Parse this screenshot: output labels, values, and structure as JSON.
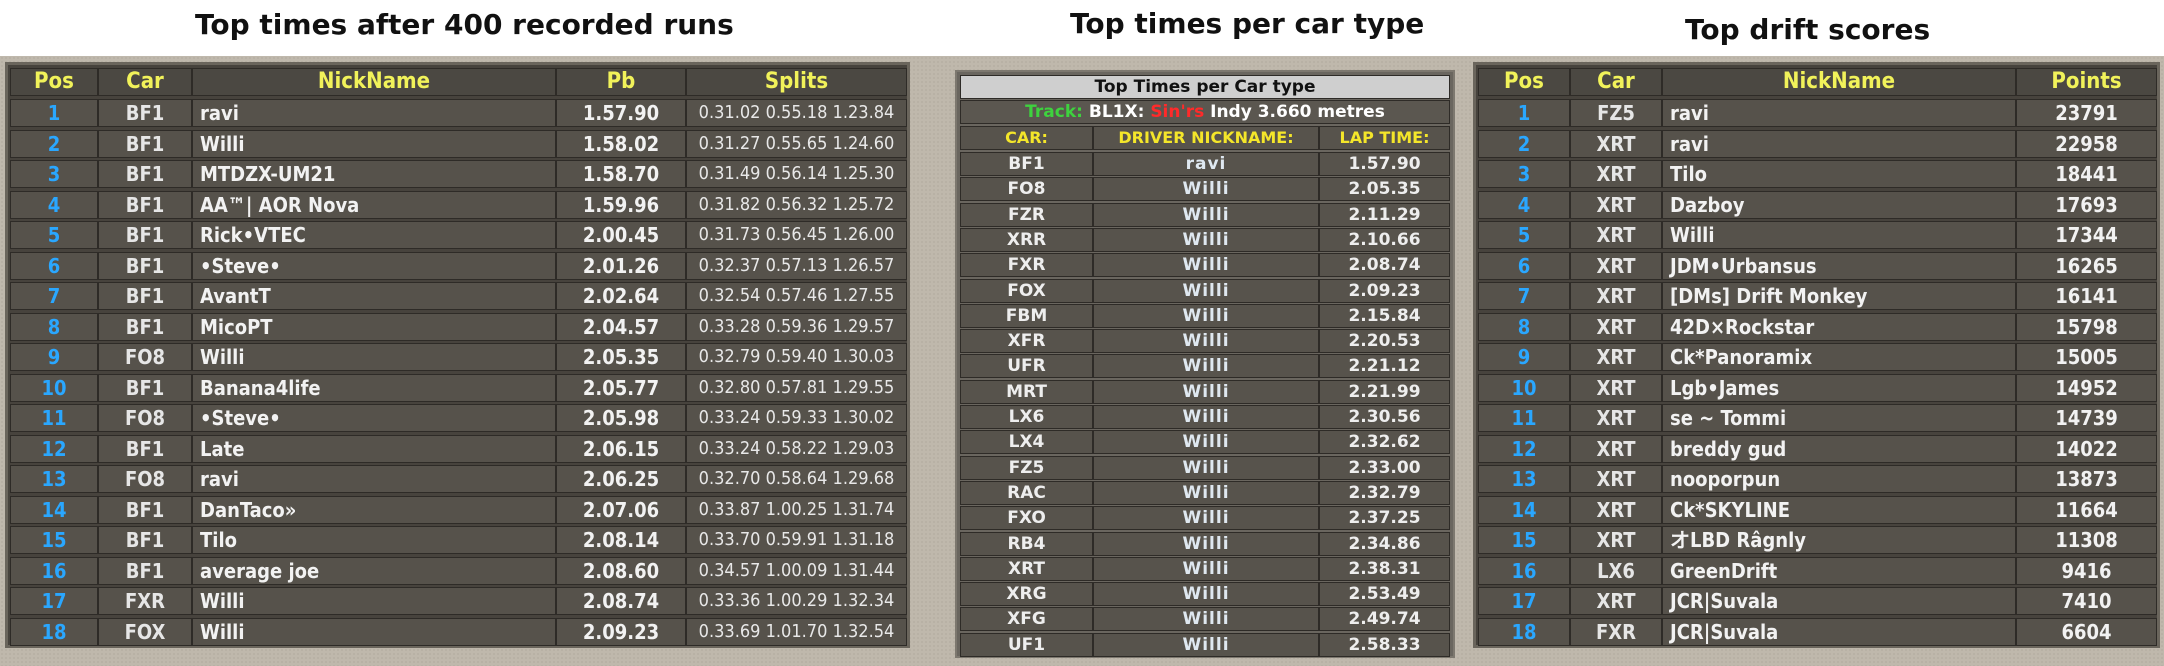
{
  "titles": {
    "left": "Top times after 400 recorded runs",
    "middle": "Top times per car type",
    "right": "Top drift scores"
  },
  "colors": {
    "header_text": "#f1f25a",
    "position_text": "#2aa7ff",
    "panel_bg": "#47433d",
    "board_bg": "#bfb8ac"
  },
  "left_table": {
    "headers": {
      "pos": "Pos",
      "car": "Car",
      "nick": "NickName",
      "pb": "Pb",
      "splits": "Splits"
    },
    "rows": [
      {
        "pos": "1",
        "car": "BF1",
        "nick": "ravi",
        "pb": "1.57.90",
        "splits": "0.31.02 0.55.18 1.23.84"
      },
      {
        "pos": "2",
        "car": "BF1",
        "nick": "Willi",
        "pb": "1.58.02",
        "splits": "0.31.27 0.55.65 1.24.60"
      },
      {
        "pos": "3",
        "car": "BF1",
        "nick": "MTDZX-UM21",
        "pb": "1.58.70",
        "splits": "0.31.49 0.56.14 1.25.30"
      },
      {
        "pos": "4",
        "car": "BF1",
        "nick": "AA™| AOR Nova",
        "pb": "1.59.96",
        "splits": "0.31.82 0.56.32 1.25.72"
      },
      {
        "pos": "5",
        "car": "BF1",
        "nick": "Rick•VTEC",
        "pb": "2.00.45",
        "splits": "0.31.73 0.56.45 1.26.00"
      },
      {
        "pos": "6",
        "car": "BF1",
        "nick": "•Steve•",
        "pb": "2.01.26",
        "splits": "0.32.37 0.57.13 1.26.57"
      },
      {
        "pos": "7",
        "car": "BF1",
        "nick": "AvantT",
        "pb": "2.02.64",
        "splits": "0.32.54 0.57.46 1.27.55"
      },
      {
        "pos": "8",
        "car": "BF1",
        "nick": "MicoPT",
        "pb": "2.04.57",
        "splits": "0.33.28 0.59.36 1.29.57"
      },
      {
        "pos": "9",
        "car": "FO8",
        "nick": "Willi",
        "pb": "2.05.35",
        "splits": "0.32.79 0.59.40 1.30.03"
      },
      {
        "pos": "10",
        "car": "BF1",
        "nick": "Banana4life",
        "pb": "2.05.77",
        "splits": "0.32.80 0.57.81 1.29.55"
      },
      {
        "pos": "11",
        "car": "FO8",
        "nick": "•Steve•",
        "pb": "2.05.98",
        "splits": "0.33.24 0.59.33 1.30.02"
      },
      {
        "pos": "12",
        "car": "BF1",
        "nick": "Late",
        "pb": "2.06.15",
        "splits": "0.33.24 0.58.22 1.29.03"
      },
      {
        "pos": "13",
        "car": "FO8",
        "nick": "ravi",
        "pb": "2.06.25",
        "splits": "0.32.70 0.58.64 1.29.68"
      },
      {
        "pos": "14",
        "car": "BF1",
        "nick": "DanTaco»",
        "pb": "2.07.06",
        "splits": "0.33.87 1.00.25 1.31.74"
      },
      {
        "pos": "15",
        "car": "BF1",
        "nick": "Tilo",
        "pb": "2.08.14",
        "splits": "0.33.70 0.59.91 1.31.18"
      },
      {
        "pos": "16",
        "car": "BF1",
        "nick": "average joe",
        "pb": "2.08.60",
        "splits": "0.34.57 1.00.09 1.31.44"
      },
      {
        "pos": "17",
        "car": "FXR",
        "nick": "Willi",
        "pb": "2.08.74",
        "splits": "0.33.36 1.00.29 1.32.34"
      },
      {
        "pos": "18",
        "car": "FOX",
        "nick": "Willi",
        "pb": "2.09.23",
        "splits": "0.33.69 1.01.70 1.32.54"
      }
    ]
  },
  "middle_table": {
    "title": "Top Times per Car type",
    "track_label": "Track:",
    "track_code": "BL1X:",
    "track_server": "Sin'rs",
    "track_desc": "Indy 3.660 metres",
    "headers": {
      "car": "CAR:",
      "nick": "DRIVER NICKNAME:",
      "time": "LAP TIME:"
    },
    "rows": [
      {
        "car": "BF1",
        "nick": "ravi",
        "time": "1.57.90"
      },
      {
        "car": "FO8",
        "nick": "Willi",
        "time": "2.05.35"
      },
      {
        "car": "FZR",
        "nick": "Willi",
        "time": "2.11.29"
      },
      {
        "car": "XRR",
        "nick": "Willi",
        "time": "2.10.66"
      },
      {
        "car": "FXR",
        "nick": "Willi",
        "time": "2.08.74"
      },
      {
        "car": "FOX",
        "nick": "Willi",
        "time": "2.09.23"
      },
      {
        "car": "FBM",
        "nick": "Willi",
        "time": "2.15.84"
      },
      {
        "car": "XFR",
        "nick": "Willi",
        "time": "2.20.53"
      },
      {
        "car": "UFR",
        "nick": "Willi",
        "time": "2.21.12"
      },
      {
        "car": "MRT",
        "nick": "Willi",
        "time": "2.21.99"
      },
      {
        "car": "LX6",
        "nick": "Willi",
        "time": "2.30.56"
      },
      {
        "car": "LX4",
        "nick": "Willi",
        "time": "2.32.62"
      },
      {
        "car": "FZ5",
        "nick": "Willi",
        "time": "2.33.00"
      },
      {
        "car": "RAC",
        "nick": "Willi",
        "time": "2.32.79"
      },
      {
        "car": "FXO",
        "nick": "Willi",
        "time": "2.37.25"
      },
      {
        "car": "RB4",
        "nick": "Willi",
        "time": "2.34.86"
      },
      {
        "car": "XRT",
        "nick": "Willi",
        "time": "2.38.31"
      },
      {
        "car": "XRG",
        "nick": "Willi",
        "time": "2.53.49"
      },
      {
        "car": "XFG",
        "nick": "Willi",
        "time": "2.49.74"
      },
      {
        "car": "UF1",
        "nick": "Willi",
        "time": "2.58.33"
      }
    ]
  },
  "right_table": {
    "headers": {
      "pos": "Pos",
      "car": "Car",
      "nick": "NickName",
      "points": "Points"
    },
    "rows": [
      {
        "pos": "1",
        "car": "FZ5",
        "nick": "ravi",
        "points": "23791"
      },
      {
        "pos": "2",
        "car": "XRT",
        "nick": "ravi",
        "points": "22958"
      },
      {
        "pos": "3",
        "car": "XRT",
        "nick": "Tilo",
        "points": "18441"
      },
      {
        "pos": "4",
        "car": "XRT",
        "nick": "Dazboy",
        "points": "17693"
      },
      {
        "pos": "5",
        "car": "XRT",
        "nick": "Willi",
        "points": "17344"
      },
      {
        "pos": "6",
        "car": "XRT",
        "nick": "JDM•Urbansus",
        "points": "16265"
      },
      {
        "pos": "7",
        "car": "XRT",
        "nick": "[DMs] Drift Monkey",
        "points": "16141"
      },
      {
        "pos": "8",
        "car": "XRT",
        "nick": "42D×Rockstar",
        "points": "15798"
      },
      {
        "pos": "9",
        "car": "XRT",
        "nick": "Ck*Panoramix",
        "points": "15005"
      },
      {
        "pos": "10",
        "car": "XRT",
        "nick": "Lgb•James",
        "points": "14952"
      },
      {
        "pos": "11",
        "car": "XRT",
        "nick": "se ~ Tommi",
        "points": "14739"
      },
      {
        "pos": "12",
        "car": "XRT",
        "nick": "breddy gud",
        "points": "14022"
      },
      {
        "pos": "13",
        "car": "XRT",
        "nick": "nooporpun",
        "points": "13873"
      },
      {
        "pos": "14",
        "car": "XRT",
        "nick": "Ck*SKYLINE",
        "points": "11664"
      },
      {
        "pos": "15",
        "car": "XRT",
        "nick": "オLBD Râgnly",
        "points": "11308"
      },
      {
        "pos": "16",
        "car": "LX6",
        "nick": "GreenDrift",
        "points": "9416"
      },
      {
        "pos": "17",
        "car": "XRT",
        "nick": "JCR|Suvala",
        "points": "7410"
      },
      {
        "pos": "18",
        "car": "FXR",
        "nick": "JCR|Suvala",
        "points": "6604"
      }
    ]
  }
}
